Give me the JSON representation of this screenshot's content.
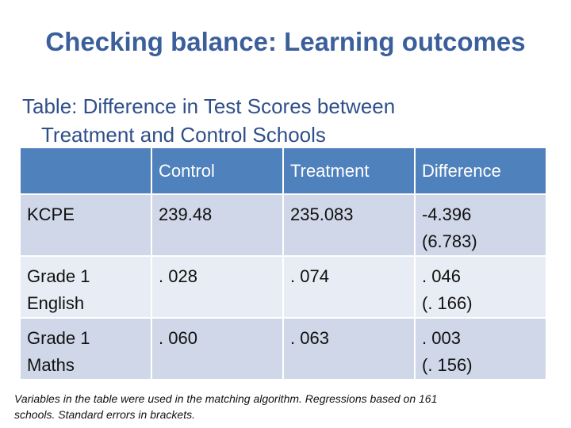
{
  "title": "Checking balance: Learning outcomes",
  "subtitle": {
    "line1": "Table: Difference in Test Scores between",
    "line2": "Treatment and Control Schools"
  },
  "table": {
    "headers": [
      "",
      "Control",
      "Treatment",
      "Difference"
    ],
    "rows": [
      {
        "label": "KCPE",
        "control": "239.48",
        "treatment": "235.083",
        "diff": "-4.396",
        "se": "(6.783)"
      },
      {
        "label_line1": "Grade 1",
        "label_line2": "English",
        "control": ". 028",
        "treatment": ". 074",
        "diff": ". 046",
        "se": "(. 166)"
      },
      {
        "label_line1": "Grade 1",
        "label_line2": "Maths",
        "control": ". 060",
        "treatment": ". 063",
        "diff": ". 003",
        "se": "(. 156)"
      }
    ]
  },
  "note": {
    "line1": "Variables in the table were used in the matching algorithm. Regressions based on 161",
    "line2": "schools. Standard errors in brackets."
  }
}
